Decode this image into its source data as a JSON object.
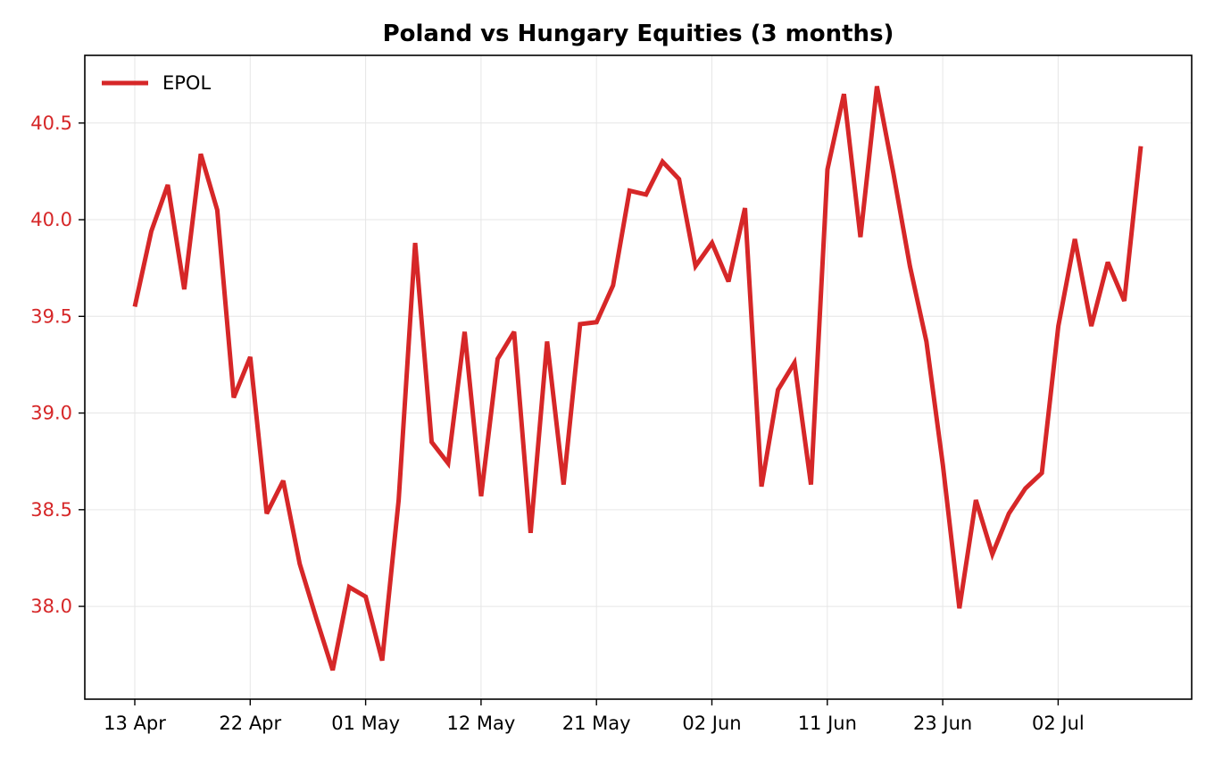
{
  "colors": {
    "series": "#d62728",
    "grid": "#e6e6e6",
    "axis": "#000000",
    "background": "#ffffff"
  },
  "chart_data": {
    "type": "line",
    "title": "Poland vs Hungary Equities (3 months)",
    "xlabel": "",
    "ylabel": "",
    "ylim": [
      37.52,
      40.85
    ],
    "grid": true,
    "legend_position": "top-left",
    "x_tick_labels": [
      "13 Apr",
      "22 Apr",
      "01 May",
      "12 May",
      "21 May",
      "02 Jun",
      "11 Jun",
      "23 Jun",
      "02 Jul"
    ],
    "y_ticks": [
      38.0,
      38.5,
      39.0,
      39.5,
      40.0,
      40.5
    ],
    "y_tick_labels": [
      "38.0",
      "38.5",
      "39.0",
      "39.5",
      "40.0",
      "40.5"
    ],
    "series": [
      {
        "name": "EPOL",
        "values": [
          39.55,
          39.94,
          40.18,
          39.64,
          40.34,
          40.05,
          39.08,
          39.29,
          38.48,
          38.65,
          38.22,
          37.94,
          37.67,
          38.1,
          38.05,
          37.72,
          38.55,
          39.88,
          38.85,
          38.74,
          39.42,
          38.57,
          39.28,
          39.42,
          38.38,
          39.37,
          38.63,
          39.46,
          39.47,
          39.66,
          40.15,
          40.13,
          40.3,
          40.21,
          39.76,
          39.88,
          39.68,
          40.06,
          38.62,
          39.12,
          39.26,
          38.63,
          40.26,
          40.65,
          39.91,
          40.69,
          40.24,
          39.76,
          39.37,
          38.73,
          37.99,
          38.55,
          38.27,
          38.48,
          38.61,
          38.69,
          39.45,
          39.9,
          39.45,
          39.78,
          39.58,
          40.38
        ]
      }
    ]
  }
}
